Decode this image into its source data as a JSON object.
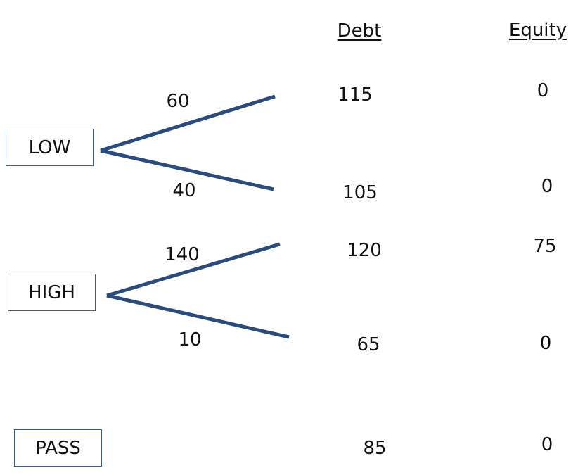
{
  "headers": {
    "debt": "Debt",
    "equity": "Equity"
  },
  "line_color": "#284b80",
  "options": [
    {
      "label": "LOW",
      "branches": [
        {
          "value": "60",
          "debt": "115",
          "equity": "0"
        },
        {
          "value": "40",
          "debt": "105",
          "equity": "0"
        }
      ]
    },
    {
      "label": "HIGH",
      "branches": [
        {
          "value": "140",
          "debt": "120",
          "equity": "75"
        },
        {
          "value": "10",
          "debt": "65",
          "equity": "0"
        }
      ]
    },
    {
      "label": "PASS",
      "branches": [
        {
          "debt": "85",
          "equity": "0"
        }
      ]
    }
  ]
}
